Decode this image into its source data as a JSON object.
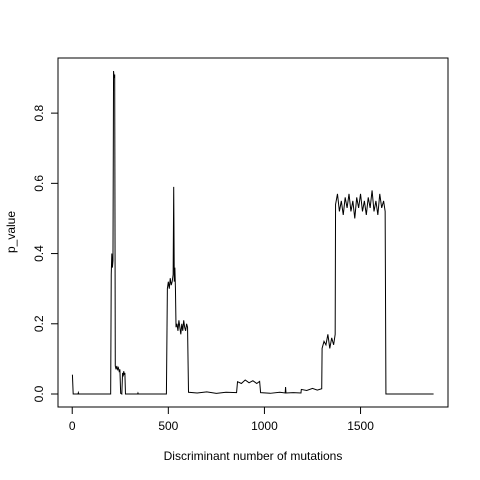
{
  "chart_data": {
    "type": "line",
    "xlabel": "Discriminant number of mutations",
    "ylabel": "p_value",
    "color": "#000000",
    "xlim": [
      -74,
      1955
    ],
    "ylim": [
      -0.037,
      0.957
    ],
    "xticks": [
      0,
      500,
      1000,
      1500
    ],
    "yticks": [
      {
        "value": 0,
        "label": "0.0"
      },
      0.2,
      0.4,
      0.6,
      0.8
    ],
    "x": [
      1,
      5,
      30,
      32,
      34,
      200,
      203,
      206,
      209,
      212,
      215,
      218,
      221,
      224,
      228,
      232,
      236,
      240,
      244,
      248,
      252,
      258,
      262,
      265,
      268,
      271,
      274,
      277,
      340,
      342,
      344,
      490,
      495,
      500,
      505,
      510,
      515,
      520,
      525,
      528,
      531,
      534,
      537,
      540,
      545,
      550,
      555,
      560,
      565,
      570,
      575,
      580,
      585,
      590,
      595,
      600,
      605,
      650,
      700,
      750,
      800,
      855,
      860,
      880,
      900,
      920,
      940,
      960,
      975,
      980,
      1030,
      1080,
      1108,
      1110,
      1112,
      1150,
      1190,
      1192,
      1220,
      1250,
      1275,
      1298,
      1300,
      1310,
      1320,
      1330,
      1340,
      1350,
      1360,
      1368,
      1370,
      1380,
      1390,
      1400,
      1410,
      1420,
      1430,
      1440,
      1450,
      1460,
      1470,
      1480,
      1490,
      1500,
      1510,
      1520,
      1530,
      1540,
      1550,
      1560,
      1570,
      1580,
      1590,
      1600,
      1610,
      1620,
      1628,
      1632,
      1880
    ],
    "values": [
      0.055,
      0,
      0,
      0.004,
      0,
      0,
      0.34,
      0.4,
      0.36,
      0.38,
      0.92,
      0.9,
      0.91,
      0.08,
      0.07,
      0.08,
      0.07,
      0.075,
      0.065,
      0.07,
      0.002,
      0,
      0.06,
      0.05,
      0.065,
      0.055,
      0.06,
      0,
      0,
      0.003,
      0,
      0,
      0.3,
      0.32,
      0.3,
      0.33,
      0.31,
      0.32,
      0.34,
      0.59,
      0.32,
      0.36,
      0.3,
      0.19,
      0.2,
      0.18,
      0.21,
      0.19,
      0.17,
      0.2,
      0.18,
      0.21,
      0.19,
      0.18,
      0.2,
      0.19,
      0.005,
      0.003,
      0.006,
      0.002,
      0.005,
      0.004,
      0.035,
      0.03,
      0.04,
      0.032,
      0.038,
      0.03,
      0.036,
      0.004,
      0.002,
      0.005,
      0.003,
      0.02,
      0.003,
      0.004,
      0.003,
      0.013,
      0.01,
      0.016,
      0.011,
      0.015,
      0.13,
      0.15,
      0.14,
      0.17,
      0.13,
      0.16,
      0.14,
      0.17,
      0.54,
      0.57,
      0.52,
      0.55,
      0.51,
      0.56,
      0.53,
      0.57,
      0.52,
      0.55,
      0.5,
      0.56,
      0.53,
      0.57,
      0.52,
      0.55,
      0.51,
      0.56,
      0.53,
      0.58,
      0.52,
      0.55,
      0.51,
      0.57,
      0.53,
      0.55,
      0.52,
      0,
      0
    ]
  }
}
